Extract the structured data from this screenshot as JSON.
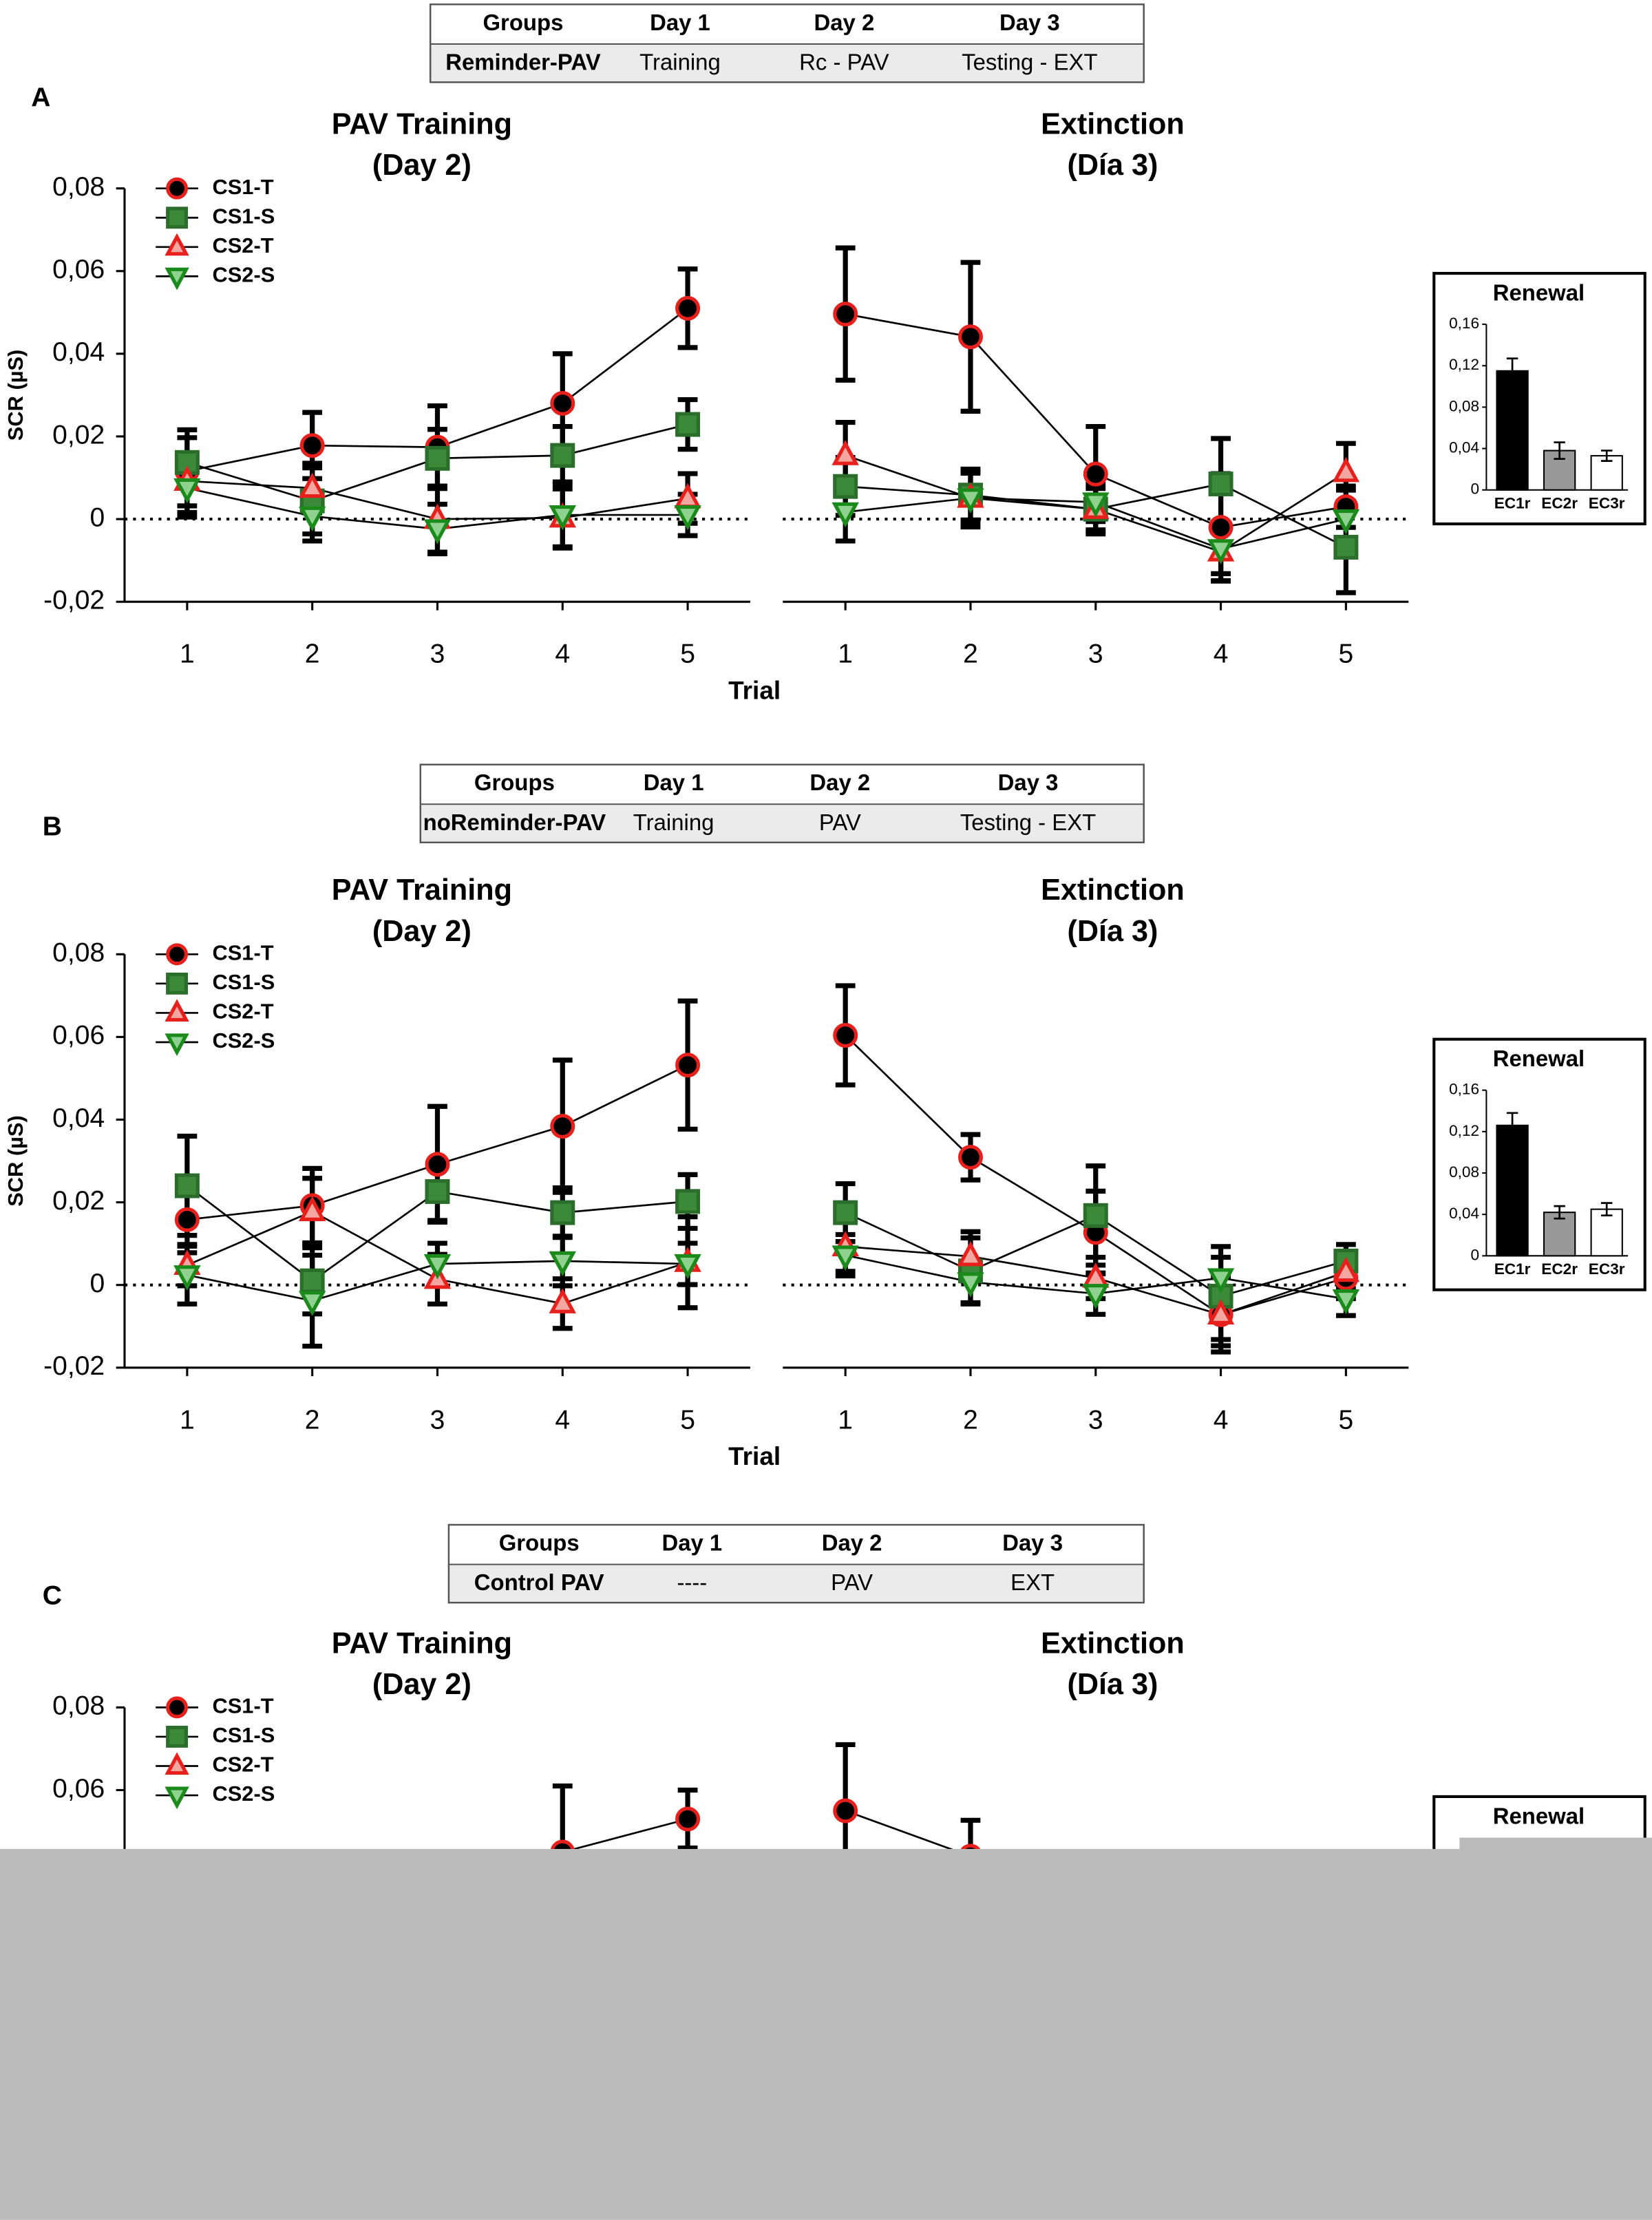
{
  "panels": [
    {
      "label": "A",
      "table": {
        "header": [
          "Groups",
          "Day 1",
          "Day 2",
          "Day 3"
        ],
        "row": [
          "Reminder-PAV",
          "Training",
          "Rc - PAV",
          "Testing - EXT"
        ]
      }
    },
    {
      "label": "B",
      "table": {
        "header": [
          "Groups",
          "Day 1",
          "Day 2",
          "Day 3"
        ],
        "row": [
          "noReminder-PAV",
          "Training",
          "PAV",
          "Testing - EXT"
        ]
      }
    },
    {
      "label": "C",
      "table": {
        "header": [
          "Groups",
          "Day 1",
          "Day 2",
          "Day 3"
        ],
        "row": [
          "Control PAV",
          "----",
          "PAV",
          "EXT"
        ]
      }
    }
  ],
  "chart_data": [
    {
      "type": "line",
      "title": [
        "PAV Training",
        "(Day 2)"
      ],
      "ylabel": "SCR (µS)",
      "xlabel": "Trial",
      "x": [
        1,
        2,
        3,
        4,
        5
      ],
      "xlim": [
        0.5,
        5.5
      ],
      "xticks": [
        1,
        2,
        3,
        4,
        5
      ],
      "ylim": [
        -0.02,
        0.08
      ],
      "yticks": [
        {
          "value": -0.02,
          "label": "-0,02"
        },
        0,
        {
          "value": 0.02,
          "label": "0,02"
        },
        {
          "value": 0.04,
          "label": "0,04"
        },
        {
          "value": 0.06,
          "label": "0,06"
        },
        {
          "value": 0.08,
          "label": "0,08"
        }
      ],
      "hline": 0,
      "series": [
        {
          "name": "CS1-T",
          "marker": "circle",
          "color": "#e8201c",
          "fill": "#000000",
          "values": [
            0.0116,
            0.0178,
            0.0174,
            0.028,
            0.051
          ],
          "errors": [
            0.01,
            0.008,
            0.01,
            0.012,
            0.0095
          ]
        },
        {
          "name": "CS1-S",
          "marker": "square",
          "color": "#2b6e2b",
          "fill": "#3a8a3a",
          "values": [
            0.0137,
            0.0044,
            0.0147,
            0.0154,
            0.0229
          ],
          "errors": [
            0.006,
            0.008,
            0.007,
            0.007,
            0.006
          ]
        },
        {
          "name": "CS2-T",
          "marker": "triangle-up",
          "color": "#e8201c",
          "fill": "#f4a6a0",
          "values": [
            0.0092,
            0.0075,
            0,
            0.0003,
            0.005
          ],
          "errors": [
            0.006,
            0.006,
            0.008,
            0.007,
            0.006
          ]
        },
        {
          "name": "CS2-S",
          "marker": "triangle-down",
          "color": "#1a8a1a",
          "fill": "#8fd18f",
          "values": [
            0.0075,
            0.0007,
            -0.0024,
            0.001,
            0.001
          ],
          "errors": [
            0.007,
            0.006,
            0.006,
            0.008,
            0.005
          ]
        }
      ]
    },
    {
      "type": "line",
      "title": [
        "Extinction",
        "(Día 3)"
      ],
      "x": [
        1,
        2,
        3,
        4,
        5
      ],
      "xlim": [
        0.5,
        5.5
      ],
      "xticks": [
        1,
        2,
        3,
        4,
        5
      ],
      "ylim": [
        -0.02,
        0.08
      ],
      "hline": 0,
      "series": [
        {
          "marker": "circle",
          "color": "#e8201c",
          "fill": "#000000",
          "values": [
            0.0496,
            0.0441,
            0.0109,
            -0.002,
            0.003
          ],
          "errors": [
            0.016,
            0.018,
            0.0115,
            0.013,
            0.005
          ]
        },
        {
          "marker": "square",
          "color": "#2b6e2b",
          "fill": "#3a8a3a",
          "values": [
            0.0079,
            0.0058,
            0.0024,
            0.0085,
            -0.0068
          ],
          "errors": [
            0.007,
            0.006,
            0.005,
            0.011,
            0.011
          ]
        },
        {
          "marker": "triangle-up",
          "color": "#e8201c",
          "fill": "#f4a6a0",
          "values": [
            0.0154,
            0.0051,
            0.0024,
            -0.0079,
            0.0113
          ],
          "errors": [
            0.008,
            0.007,
            0.006,
            0.007,
            0.007
          ]
        },
        {
          "marker": "triangle-down",
          "color": "#1a8a1a",
          "fill": "#8fd18f",
          "values": [
            0.0017,
            0.0051,
            0.0041,
            -0.0072,
            0
          ],
          "errors": [
            0.007,
            0.006,
            0.007,
            0.006,
            0.007
          ]
        }
      ]
    },
    {
      "type": "bar",
      "title": "Renewal",
      "categories": [
        "EC1r",
        "EC2r",
        "EC3r"
      ],
      "values": [
        0.115,
        0.038,
        0.033
      ],
      "errors": [
        0.012,
        0.008,
        0.005
      ],
      "colors": [
        "#000000",
        "#999999",
        "#ffffff"
      ],
      "ylim": [
        0,
        0.16
      ],
      "yticks": [
        0,
        {
          "value": 0.04,
          "label": "0,04"
        },
        {
          "value": 0.08,
          "label": "0,08"
        },
        {
          "value": 0.12,
          "label": "0,12"
        },
        {
          "value": 0.16,
          "label": "0,16"
        }
      ]
    },
    {
      "type": "line",
      "title": [
        "PAV Training",
        "(Day 2)"
      ],
      "ylabel": "SCR (µS)",
      "xlabel": "Trial",
      "x": [
        1,
        2,
        3,
        4,
        5
      ],
      "xlim": [
        0.5,
        5.5
      ],
      "xticks": [
        1,
        2,
        3,
        4,
        5
      ],
      "ylim": [
        -0.02,
        0.08
      ],
      "yticks": [
        {
          "value": -0.02,
          "label": "-0,02"
        },
        0,
        {
          "value": 0.02,
          "label": "0,02"
        },
        {
          "value": 0.04,
          "label": "0,04"
        },
        {
          "value": 0.06,
          "label": "0,06"
        },
        {
          "value": 0.08,
          "label": "0,08"
        }
      ],
      "hline": 0,
      "series": [
        {
          "name": "CS1-T",
          "marker": "circle",
          "color": "#e8201c",
          "fill": "#000000",
          "values": [
            0.0158,
            0.0192,
            0.0292,
            0.0384,
            0.0532
          ],
          "errors": [
            0.008,
            0.009,
            0.014,
            0.016,
            0.0155
          ]
        },
        {
          "name": "CS1-S",
          "marker": "square",
          "color": "#2b6e2b",
          "fill": "#3a8a3a",
          "values": [
            0.024,
            0.001,
            0.0226,
            0.0175,
            0.0202
          ],
          "errors": [
            0.012,
            0.008,
            0.007,
            0.006,
            0.0065
          ]
        },
        {
          "name": "CS2-T",
          "marker": "triangle-up",
          "color": "#e8201c",
          "fill": "#f4a6a0",
          "values": [
            0.0048,
            0.0178,
            0.0014,
            -0.0045,
            0.0055
          ],
          "errors": [
            0.005,
            0.008,
            0.006,
            0.006,
            0.011
          ]
        },
        {
          "name": "CS2-S",
          "marker": "triangle-down",
          "color": "#1a8a1a",
          "fill": "#8fd18f",
          "values": [
            0.0024,
            -0.0038,
            0.0051,
            0.0058,
            0.0051
          ],
          "errors": [
            0.007,
            0.011,
            0.005,
            0.006,
            0.005
          ]
        }
      ]
    },
    {
      "type": "line",
      "title": [
        "Extinction",
        "(Día 3)"
      ],
      "x": [
        1,
        2,
        3,
        4,
        5
      ],
      "xlim": [
        0.5,
        5.5
      ],
      "xticks": [
        1,
        2,
        3,
        4,
        5
      ],
      "ylim": [
        -0.02,
        0.08
      ],
      "hline": 0,
      "series": [
        {
          "marker": "circle",
          "color": "#e8201c",
          "fill": "#000000",
          "values": [
            0.0604,
            0.0309,
            0.0127,
            -0.0072,
            0.0017
          ],
          "errors": [
            0.012,
            0.0055,
            0.01,
            0.009,
            0.005
          ]
        },
        {
          "marker": "square",
          "color": "#2b6e2b",
          "fill": "#3a8a3a",
          "values": [
            0.0175,
            0.0034,
            0.0168,
            -0.0027,
            0.0058
          ],
          "errors": [
            0.007,
            0.008,
            0.012,
            0.012,
            0.004
          ]
        },
        {
          "marker": "triangle-up",
          "color": "#e8201c",
          "fill": "#f4a6a0",
          "values": [
            0.0093,
            0.0069,
            0.0017,
            -0.0072,
            0.0031
          ],
          "errors": [
            0.006,
            0.006,
            0.005,
            0.006,
            0.004
          ]
        },
        {
          "marker": "triangle-down",
          "color": "#1a8a1a",
          "fill": "#8fd18f",
          "values": [
            0.0072,
            0.0007,
            -0.0021,
            0.0017,
            -0.0034
          ],
          "errors": [
            0.005,
            0.005,
            0.005,
            0.005,
            0.004
          ]
        }
      ]
    },
    {
      "type": "bar",
      "title": "Renewal",
      "categories": [
        "EC1r",
        "EC2r",
        "EC3r"
      ],
      "values": [
        0.126,
        0.042,
        0.045
      ],
      "errors": [
        0.012,
        0.006,
        0.006
      ],
      "colors": [
        "#000000",
        "#999999",
        "#ffffff"
      ],
      "ylim": [
        0,
        0.16
      ],
      "yticks": [
        0,
        {
          "value": 0.04,
          "label": "0,04"
        },
        {
          "value": 0.08,
          "label": "0,08"
        },
        {
          "value": 0.12,
          "label": "0,12"
        },
        {
          "value": 0.16,
          "label": "0,16"
        }
      ]
    },
    {
      "type": "line",
      "title": [
        "PAV Training",
        "(Day 2)"
      ],
      "x": [
        1,
        2,
        3,
        4,
        5
      ],
      "xlim": [
        0.5,
        5.5
      ],
      "ylim": [
        -0.02,
        0.08
      ],
      "yticks": [
        {
          "value": 0.06,
          "label": "0,06"
        },
        {
          "value": 0.08,
          "label": "0,08"
        }
      ],
      "series": [
        {
          "name": "CS1-T",
          "marker": "circle",
          "color": "#e8201c",
          "fill": "#000000",
          "values": [
            null,
            null,
            null,
            0.045,
            0.053
          ],
          "errors": [
            null,
            null,
            null,
            0.016,
            0.007
          ]
        },
        {
          "name": "CS1-S",
          "marker": "square",
          "color": "#2b6e2b",
          "fill": "#3a8a3a"
        },
        {
          "name": "CS2-T",
          "marker": "triangle-up",
          "color": "#e8201c",
          "fill": "#f4a6a0"
        },
        {
          "name": "CS2-S",
          "marker": "triangle-down",
          "color": "#1a8a1a",
          "fill": "#8fd18f"
        }
      ]
    },
    {
      "type": "line",
      "title": [
        "Extinction",
        "(Día 3)"
      ],
      "x": [
        1,
        2,
        3,
        4,
        5
      ],
      "xlim": [
        0.5,
        5.5
      ],
      "ylim": [
        -0.02,
        0.08
      ],
      "series": [
        {
          "marker": "circle",
          "color": "#e8201c",
          "fill": "#000000",
          "values": [
            0.055,
            0.044,
            null,
            null,
            null
          ],
          "errors": [
            0.016,
            0.0087,
            null,
            null,
            null
          ]
        }
      ]
    },
    {
      "type": "bar",
      "title": "Renewal"
    }
  ]
}
